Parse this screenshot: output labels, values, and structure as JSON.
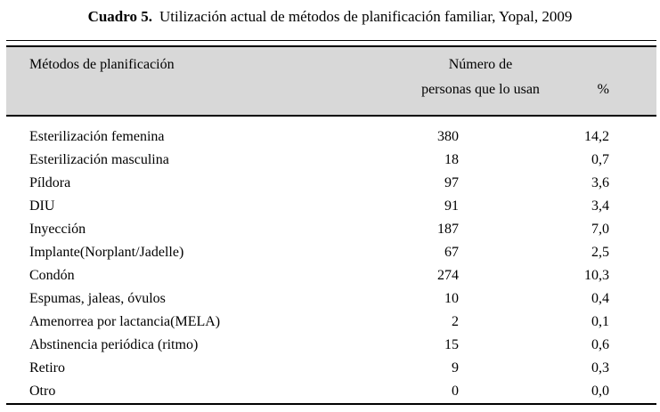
{
  "title": {
    "label": "Cuadro 5.",
    "text": "Utilización actual de métodos de planificación familiar, Yopal, 2009"
  },
  "table": {
    "header": {
      "method": "Métodos de planificación",
      "count_line1": "Número de",
      "count_line2": "personas que lo usan",
      "percent": "%"
    },
    "rows": [
      {
        "method": "Esterilización femenina",
        "count": "380",
        "percent": "14,2"
      },
      {
        "method": "Esterilización masculina",
        "count": "18",
        "percent": "0,7"
      },
      {
        "method": "Píldora",
        "count": "97",
        "percent": "3,6"
      },
      {
        "method": "DIU",
        "count": "91",
        "percent": "3,4"
      },
      {
        "method": "Inyección",
        "count": "187",
        "percent": "7,0"
      },
      {
        "method": "Implante(Norplant/Jadelle)",
        "count": "67",
        "percent": "2,5"
      },
      {
        "method": "Condón",
        "count": "274",
        "percent": "10,3"
      },
      {
        "method": "Espumas, jaleas, óvulos",
        "count": "10",
        "percent": "0,4"
      },
      {
        "method": "Amenorrea por lactancia(MELA)",
        "count": "2",
        "percent": "0,1"
      },
      {
        "method": "Abstinencia periódica (ritmo)",
        "count": "15",
        "percent": "0,6"
      },
      {
        "method": "Retiro",
        "count": "9",
        "percent": "0,3"
      },
      {
        "method": "Otro",
        "count": "0",
        "percent": "0,0"
      }
    ]
  },
  "colors": {
    "background": "#ffffff",
    "header_bg": "#d8d8d8",
    "rule": "#000000",
    "text": "#000000"
  }
}
